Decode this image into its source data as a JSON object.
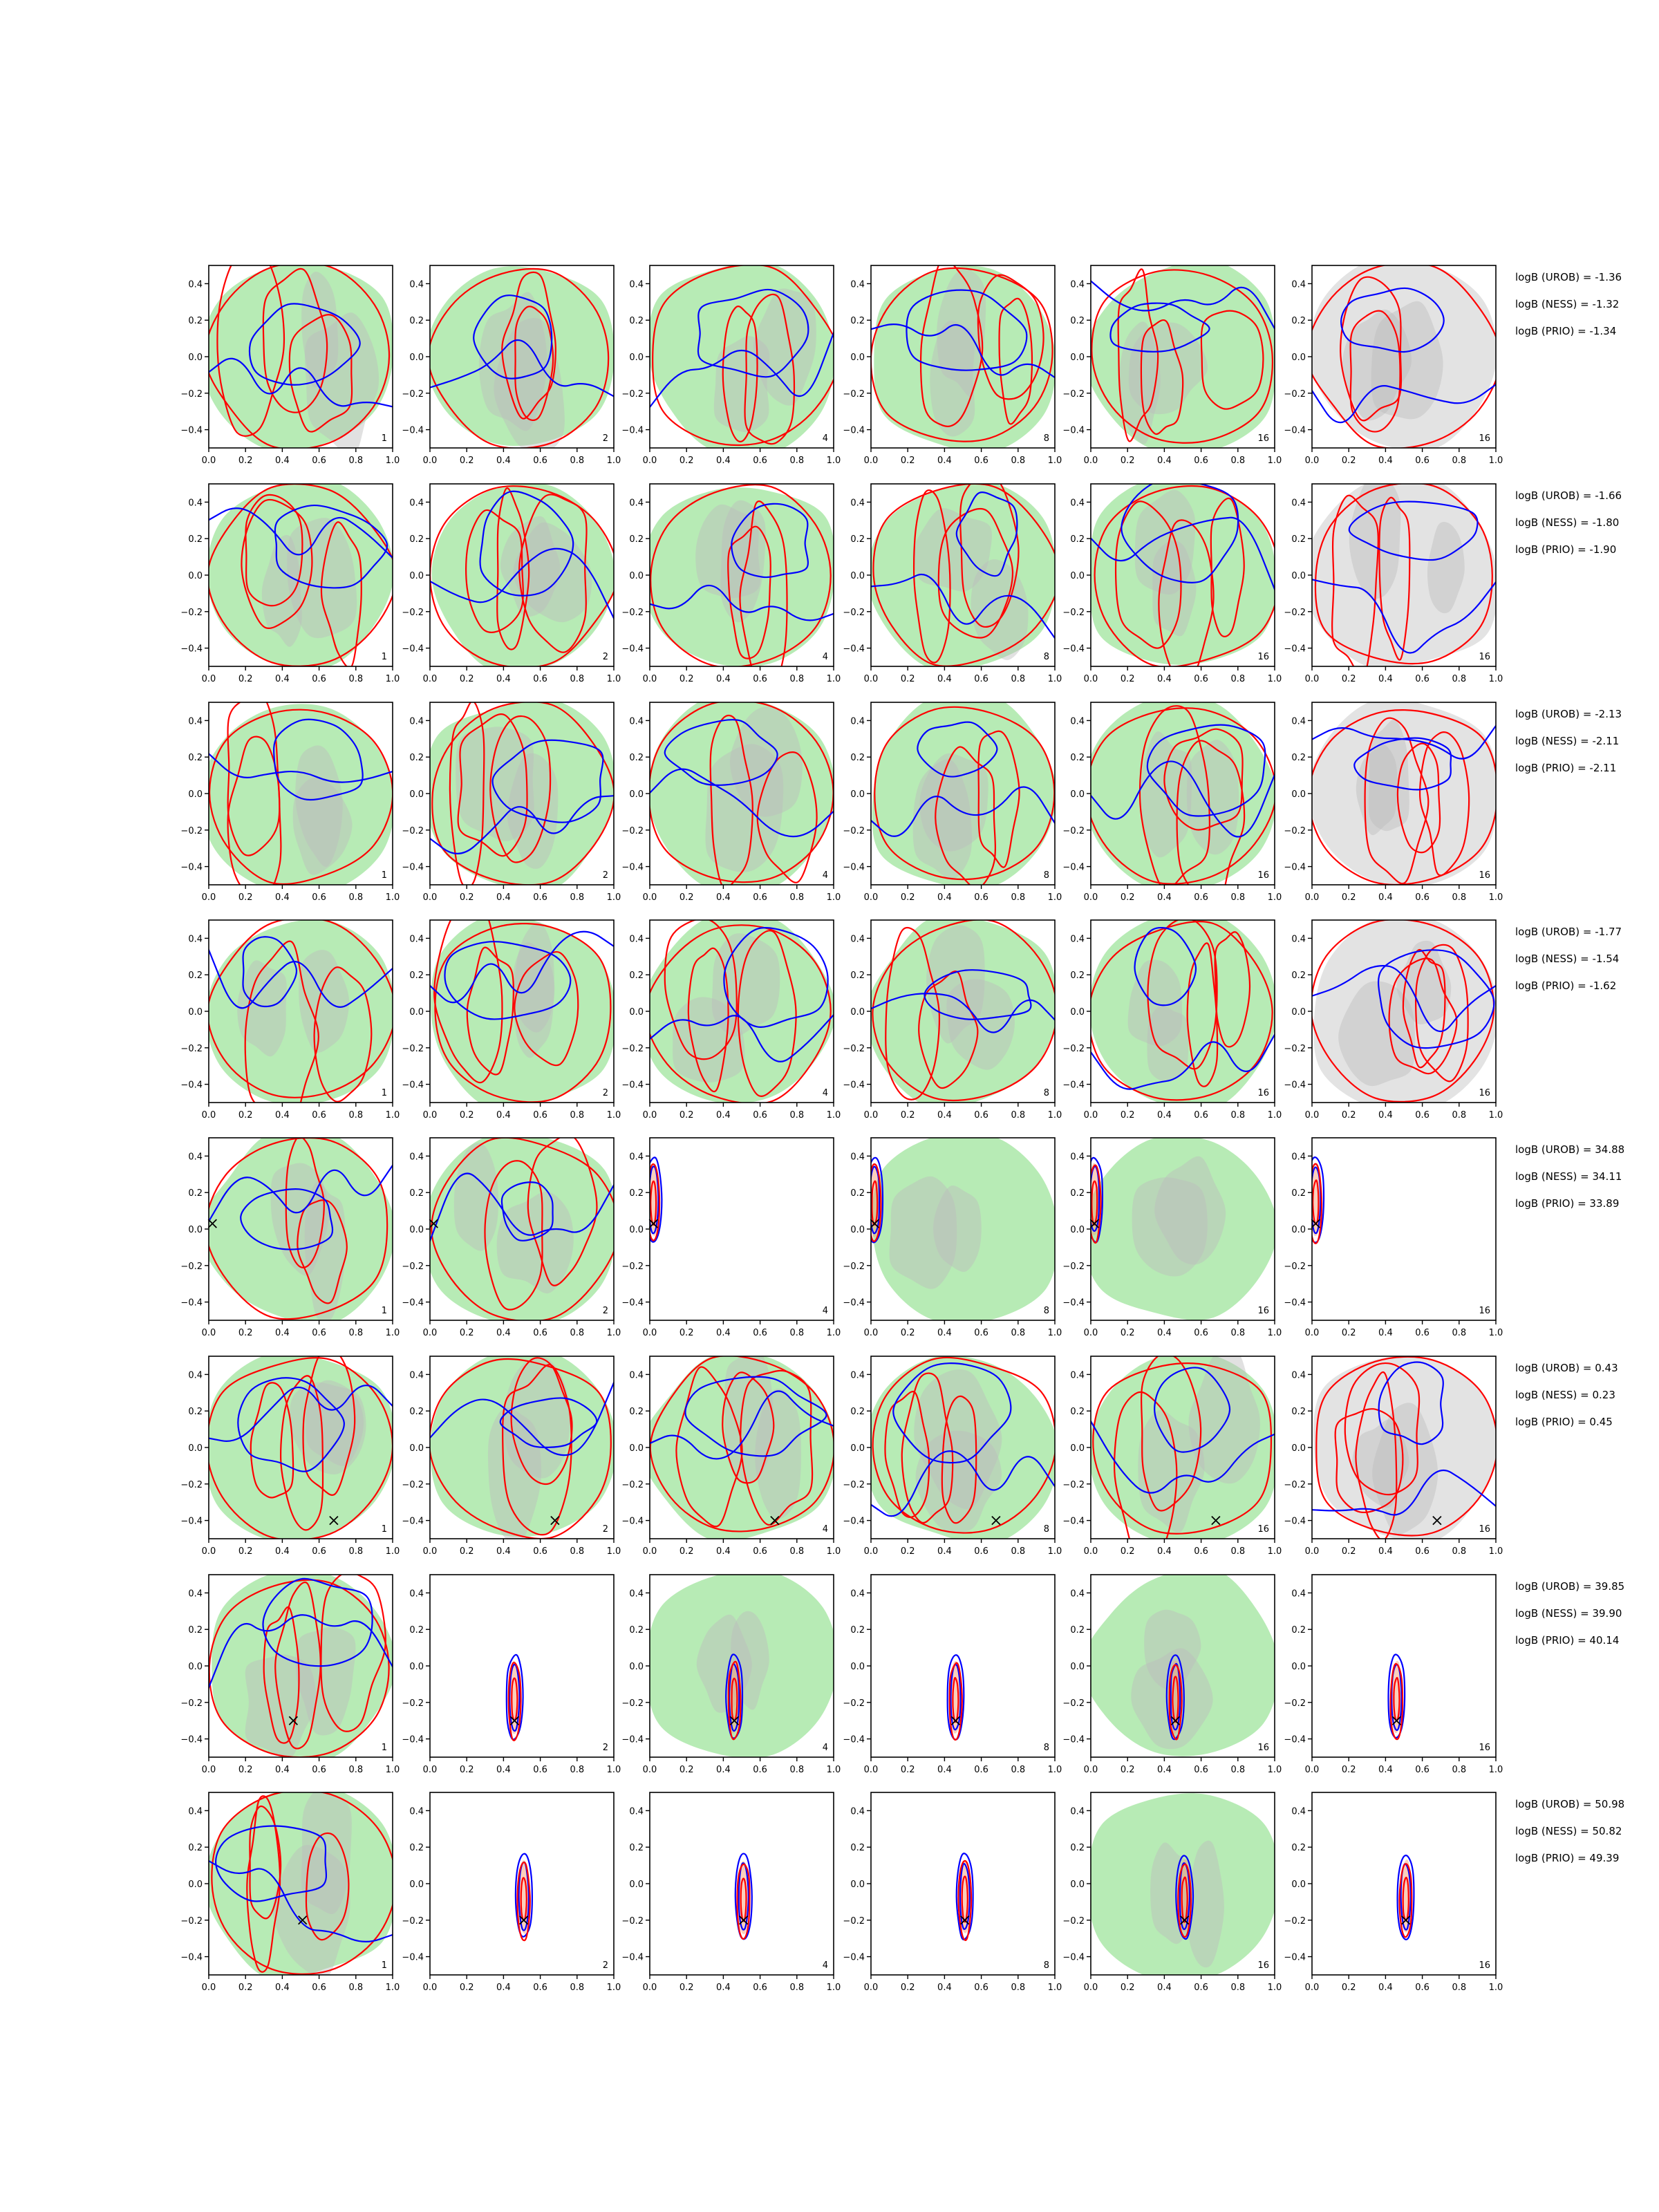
{
  "chart_data": {
    "type": "contour",
    "rows": 8,
    "cols": 6,
    "xlim": [
      0.0,
      1.0
    ],
    "ylim": [
      -0.5,
      0.5
    ],
    "xticks": [
      "0.0",
      "0.2",
      "0.4",
      "0.6",
      "0.8",
      "1.0"
    ],
    "yticks": [
      "0.4",
      "0.2",
      "0.0",
      "−0.2",
      "−0.4"
    ],
    "panel_labels": [
      "1",
      "2",
      "4",
      "8",
      "16",
      "16"
    ],
    "colors": {
      "fill_green": "#b7ebb5",
      "fill_grey": "#bdbdbd",
      "contour_blue": "#0000ff",
      "contour_red": "#ff0000",
      "marker": "#000000"
    },
    "rows_data": [
      {
        "logB": [
          "logB (UROB) = -1.36",
          "logB (NESS) = -1.32",
          "logB (PRIO) = -1.34"
        ],
        "marker": null,
        "concentrated_from": null
      },
      {
        "logB": [
          "logB (UROB) = -1.66",
          "logB (NESS) = -1.80",
          "logB (PRIO) = -1.90"
        ],
        "marker": null,
        "concentrated_from": null
      },
      {
        "logB": [
          "logB (UROB) = -2.13",
          "logB (NESS) = -2.11",
          "logB (PRIO) = -2.11"
        ],
        "marker": null,
        "concentrated_from": null
      },
      {
        "logB": [
          "logB (UROB) = -1.77",
          "logB (NESS) = -1.54",
          "logB (PRIO) = -1.62"
        ],
        "marker": null,
        "concentrated_from": null
      },
      {
        "logB": [
          "logB (UROB) = 34.88",
          "logB (NESS) = 34.11",
          "logB (PRIO) = 33.89"
        ],
        "marker": [
          0.02,
          0.03
        ],
        "concentrated_from": 2
      },
      {
        "logB": [
          "logB (UROB) = 0.43",
          "logB (NESS) = 0.23",
          "logB (PRIO) = 0.45"
        ],
        "marker": [
          0.68,
          -0.4
        ],
        "concentrated_from": null
      },
      {
        "logB": [
          "logB (UROB) = 39.85",
          "logB (NESS) = 39.90",
          "logB (PRIO) = 40.14"
        ],
        "marker": [
          0.46,
          -0.3
        ],
        "concentrated_from": 1
      },
      {
        "logB": [
          "logB (UROB) = 50.98",
          "logB (NESS) = 50.82",
          "logB (PRIO) = 49.39"
        ],
        "marker": [
          0.51,
          -0.2
        ],
        "concentrated_from": 1
      }
    ]
  }
}
